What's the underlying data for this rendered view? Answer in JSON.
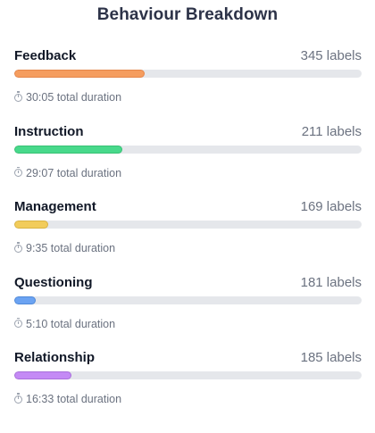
{
  "title": "Behaviour Breakdown",
  "behaviours": [
    {
      "name": "Feedback",
      "count": "345 labels",
      "duration": "30:05 total duration",
      "fill_fraction": 0.375,
      "color": "#f59d5f",
      "border": "#e5864a"
    },
    {
      "name": "Instruction",
      "count": "211 labels",
      "duration": "29:07 total duration",
      "fill_fraction": 0.311,
      "color": "#48d98b",
      "border": "#37c074"
    },
    {
      "name": "Management",
      "count": "169 labels",
      "duration": "9:35 total duration",
      "fill_fraction": 0.098,
      "color": "#f2cc5b",
      "border": "#d9b343"
    },
    {
      "name": "Questioning",
      "count": "181 labels",
      "duration": "5:10 total duration",
      "fill_fraction": 0.061,
      "color": "#6ba3f2",
      "border": "#4f89d9"
    },
    {
      "name": "Relationship",
      "count": "185 labels",
      "duration": "16:33 total duration",
      "fill_fraction": 0.164,
      "color": "#c48af5",
      "border": "#a86fdb"
    }
  ],
  "icons": {
    "duration": "clock-icon"
  }
}
